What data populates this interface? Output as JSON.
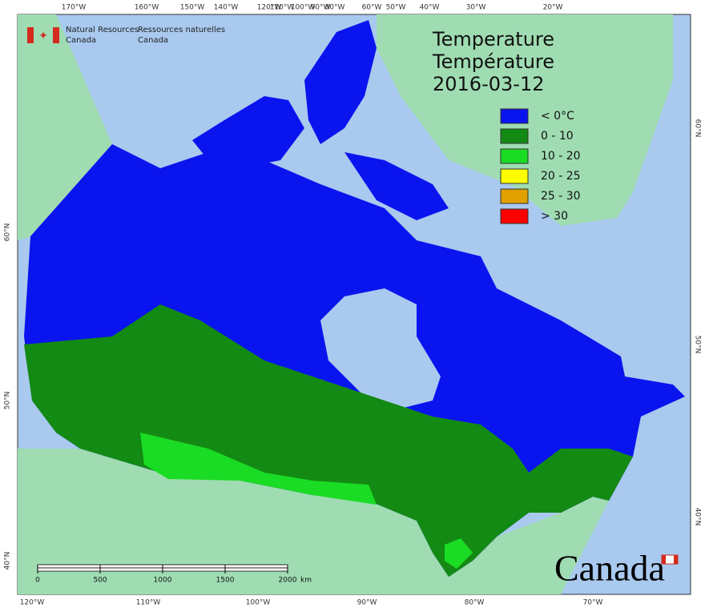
{
  "header": {
    "org_en": [
      "Natural Resources",
      "Canada"
    ],
    "org_fr": [
      "Ressources naturelles",
      "Canada"
    ]
  },
  "title": [
    "Temperature",
    "Température",
    "2016-03-12"
  ],
  "legend": [
    {
      "label": "< 0°C",
      "color": "#0a14ee"
    },
    {
      "label": "0 - 10",
      "color": "#138a13"
    },
    {
      "label": "10 - 20",
      "color": "#1bdc24"
    },
    {
      "label": "20 - 25",
      "color": "#ffff00"
    },
    {
      "label": "25 - 30",
      "color": "#e0a000"
    },
    {
      "label": "> 30",
      "color": "#ff0000"
    }
  ],
  "graticule": {
    "top": [
      "170°W",
      "160°W",
      "150°W",
      "140°W",
      "120°W",
      "110°W",
      "100°W",
      "90°W",
      "80°W",
      "60°W",
      "50°W",
      "40°W",
      "30°W",
      "20°W"
    ],
    "bottom": [
      "120°W",
      "110°W",
      "100°W",
      "90°W",
      "80°W",
      "70°W"
    ],
    "left": [
      "60°N",
      "50°N",
      "40°N"
    ],
    "right": [
      "60°N",
      "50°N",
      "40°N"
    ]
  },
  "scale_bar": {
    "ticks": [
      0,
      500,
      1000,
      1500,
      2000
    ],
    "unit": "km"
  },
  "wordmark": "Canada"
}
